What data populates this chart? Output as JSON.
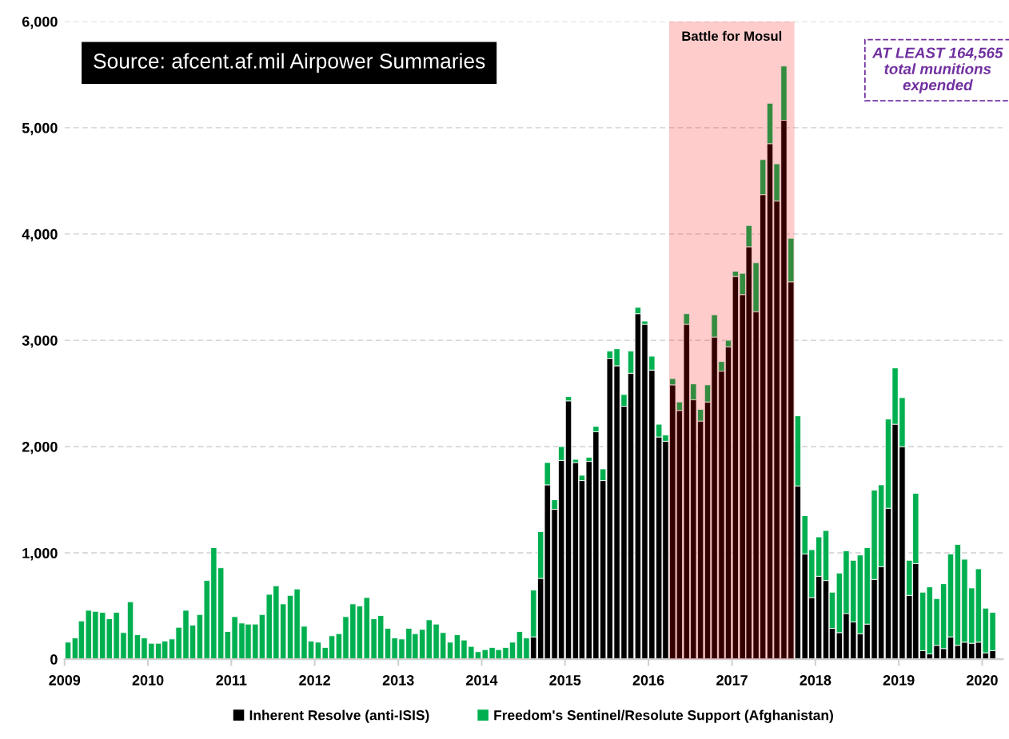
{
  "chart_data": {
    "type": "bar",
    "stacked": true,
    "x": [
      "2009-01",
      "2009-02",
      "2009-03",
      "2009-04",
      "2009-05",
      "2009-06",
      "2009-07",
      "2009-08",
      "2009-09",
      "2009-10",
      "2009-11",
      "2009-12",
      "2010-01",
      "2010-02",
      "2010-03",
      "2010-04",
      "2010-05",
      "2010-06",
      "2010-07",
      "2010-08",
      "2010-09",
      "2010-10",
      "2010-11",
      "2010-12",
      "2011-01",
      "2011-02",
      "2011-03",
      "2011-04",
      "2011-05",
      "2011-06",
      "2011-07",
      "2011-08",
      "2011-09",
      "2011-10",
      "2011-11",
      "2011-12",
      "2012-01",
      "2012-02",
      "2012-03",
      "2012-04",
      "2012-05",
      "2012-06",
      "2012-07",
      "2012-08",
      "2012-09",
      "2012-10",
      "2012-11",
      "2012-12",
      "2013-01",
      "2013-02",
      "2013-03",
      "2013-04",
      "2013-05",
      "2013-06",
      "2013-07",
      "2013-08",
      "2013-09",
      "2013-10",
      "2013-11",
      "2013-12",
      "2014-01",
      "2014-02",
      "2014-03",
      "2014-04",
      "2014-05",
      "2014-06",
      "2014-07",
      "2014-08",
      "2014-09",
      "2014-10",
      "2014-11",
      "2014-12",
      "2015-01",
      "2015-02",
      "2015-03",
      "2015-04",
      "2015-05",
      "2015-06",
      "2015-07",
      "2015-08",
      "2015-09",
      "2015-10",
      "2015-11",
      "2015-12",
      "2016-01",
      "2016-02",
      "2016-03",
      "2016-04",
      "2016-05",
      "2016-06",
      "2016-07",
      "2016-08",
      "2016-09",
      "2016-10",
      "2016-11",
      "2016-12",
      "2017-01",
      "2017-02",
      "2017-03",
      "2017-04",
      "2017-05",
      "2017-06",
      "2017-07",
      "2017-08",
      "2017-09",
      "2017-10",
      "2017-11",
      "2017-12",
      "2018-01",
      "2018-02",
      "2018-03",
      "2018-04",
      "2018-05",
      "2018-06",
      "2018-07",
      "2018-08",
      "2018-09",
      "2018-10",
      "2018-11",
      "2018-12",
      "2019-01",
      "2019-02",
      "2019-03",
      "2019-04",
      "2019-05",
      "2019-06",
      "2019-07",
      "2019-08",
      "2019-09",
      "2019-10",
      "2019-11",
      "2019-12",
      "2020-01",
      "2020-02"
    ],
    "series": [
      {
        "name": "Inherent Resolve (anti-ISIS)",
        "color": "#000000",
        "values": [
          null,
          null,
          null,
          null,
          null,
          null,
          null,
          null,
          null,
          null,
          null,
          null,
          null,
          null,
          null,
          null,
          null,
          null,
          null,
          null,
          null,
          null,
          null,
          null,
          null,
          null,
          null,
          null,
          null,
          null,
          null,
          null,
          null,
          null,
          null,
          null,
          null,
          null,
          null,
          null,
          null,
          null,
          null,
          null,
          null,
          null,
          null,
          null,
          null,
          null,
          null,
          null,
          null,
          null,
          null,
          null,
          null,
          null,
          null,
          null,
          null,
          null,
          null,
          null,
          null,
          null,
          null,
          210,
          760,
          1640,
          1410,
          1870,
          2430,
          1850,
          1680,
          1860,
          2140,
          1680,
          2830,
          2760,
          2380,
          2690,
          3250,
          3150,
          2720,
          2090,
          2050,
          2580,
          2340,
          3150,
          2440,
          2240,
          2420,
          3030,
          2710,
          2940,
          3600,
          3430,
          3880,
          3270,
          4370,
          4850,
          4310,
          5070,
          3550,
          1630,
          990,
          580,
          780,
          740,
          290,
          250,
          430,
          350,
          240,
          330,
          750,
          870,
          1420,
          2210,
          2000,
          600,
          900,
          80,
          50,
          130,
          100,
          210,
          130,
          160,
          150,
          160,
          60,
          80
        ]
      },
      {
        "name": "Freedom's Sentinel/Resolute Support (Afghanistan)",
        "color": "#00b050",
        "values": [
          160,
          200,
          360,
          460,
          450,
          440,
          380,
          440,
          250,
          540,
          230,
          200,
          150,
          150,
          170,
          190,
          300,
          460,
          320,
          420,
          740,
          1050,
          860,
          260,
          400,
          340,
          330,
          330,
          420,
          610,
          690,
          520,
          600,
          660,
          310,
          170,
          160,
          110,
          220,
          240,
          400,
          520,
          500,
          580,
          380,
          410,
          290,
          200,
          190,
          290,
          240,
          280,
          370,
          330,
          250,
          160,
          230,
          180,
          120,
          70,
          90,
          110,
          90,
          110,
          160,
          260,
          200,
          440,
          440,
          210,
          90,
          130,
          40,
          30,
          50,
          40,
          50,
          110,
          70,
          160,
          110,
          210,
          60,
          30,
          130,
          120,
          60,
          60,
          80,
          100,
          150,
          110,
          160,
          210,
          90,
          60,
          50,
          200,
          200,
          460,
          330,
          380,
          350,
          510,
          410,
          660,
          360,
          450,
          370,
          470,
          340,
          560,
          590,
          580,
          740,
          720,
          840,
          770,
          840,
          530,
          460,
          330,
          660,
          550,
          630,
          440,
          610,
          780,
          950,
          780,
          520,
          690,
          420,
          360
        ]
      }
    ],
    "xlim": [
      "2009-01",
      "2020-04"
    ],
    "xticks": [
      {
        "value": "2009",
        "label": "2009"
      },
      {
        "value": "2010",
        "label": "2010"
      },
      {
        "value": "2011",
        "label": "2011"
      },
      {
        "value": "2012",
        "label": "2012"
      },
      {
        "value": "2013",
        "label": "2013"
      },
      {
        "value": "2014",
        "label": "2014"
      },
      {
        "value": "2015",
        "label": "2015"
      },
      {
        "value": "2016",
        "label": "2016"
      },
      {
        "value": "2017",
        "label": "2017"
      },
      {
        "value": "2018",
        "label": "2018"
      },
      {
        "value": "2019",
        "label": "2019"
      },
      {
        "value": "2020",
        "label": "2020"
      }
    ],
    "ylim": [
      0,
      6000
    ],
    "yticks": [
      0,
      {
        "value": 1000,
        "label": "1,000"
      },
      {
        "value": 2000,
        "label": "2,000"
      },
      {
        "value": 3000,
        "label": "3,000"
      },
      {
        "value": 4000,
        "label": "4,000"
      },
      {
        "value": 5000,
        "label": "5,000"
      },
      {
        "value": 6000,
        "label": "6,000"
      }
    ],
    "grid": "y",
    "legend": "bottom",
    "bands": [
      {
        "axis": "x",
        "from": "2016-04",
        "to": "2017-10",
        "label": "Battle for Mosul",
        "color": "#ff0000"
      }
    ],
    "annotations": [
      "Source: afcent.af.mil Airpower Summaries",
      "AT LEAST 164,565\ntotal munitions\nexpended"
    ]
  }
}
